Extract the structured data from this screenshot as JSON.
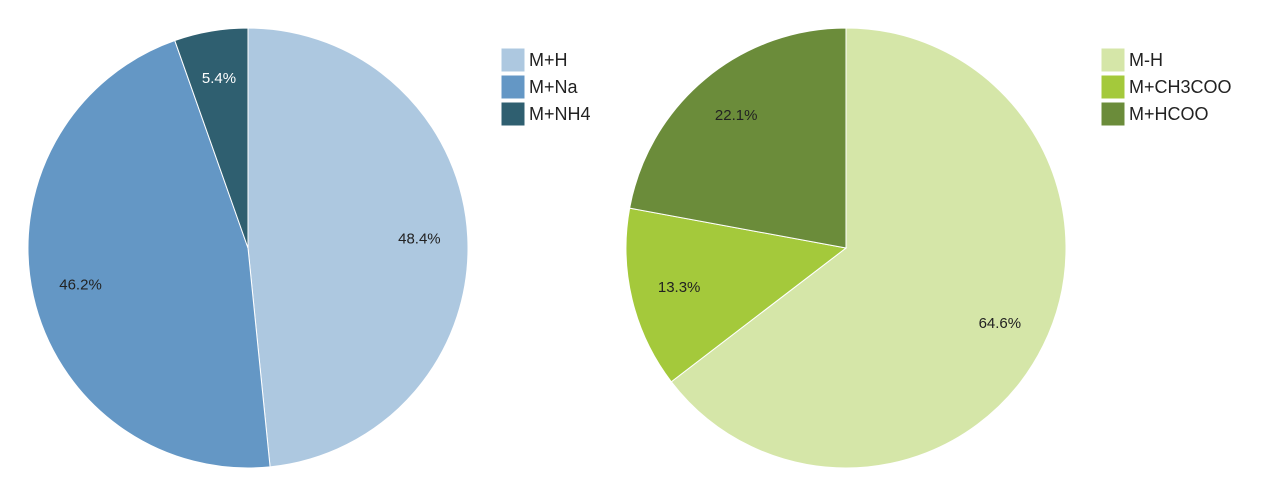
{
  "chart_data": [
    {
      "type": "pie",
      "categories": [
        "M+H",
        "M+Na",
        "M+NH4"
      ],
      "values": [
        48.4,
        46.2,
        5.4
      ],
      "value_labels": [
        "48.4%",
        "46.2%",
        "5.4%"
      ],
      "colors": [
        "#adc8e0",
        "#6497c5",
        "#2f5f70"
      ],
      "legend": "right"
    },
    {
      "type": "pie",
      "categories": [
        "M-H",
        "M+CH3COO",
        "M+HCOO"
      ],
      "values": [
        64.6,
        13.3,
        22.1
      ],
      "value_labels": [
        "64.6%",
        "13.3%",
        "22.1%"
      ],
      "colors": [
        "#d5e6a8",
        "#a4c93b",
        "#6b8c3a"
      ],
      "legend": "right"
    }
  ]
}
